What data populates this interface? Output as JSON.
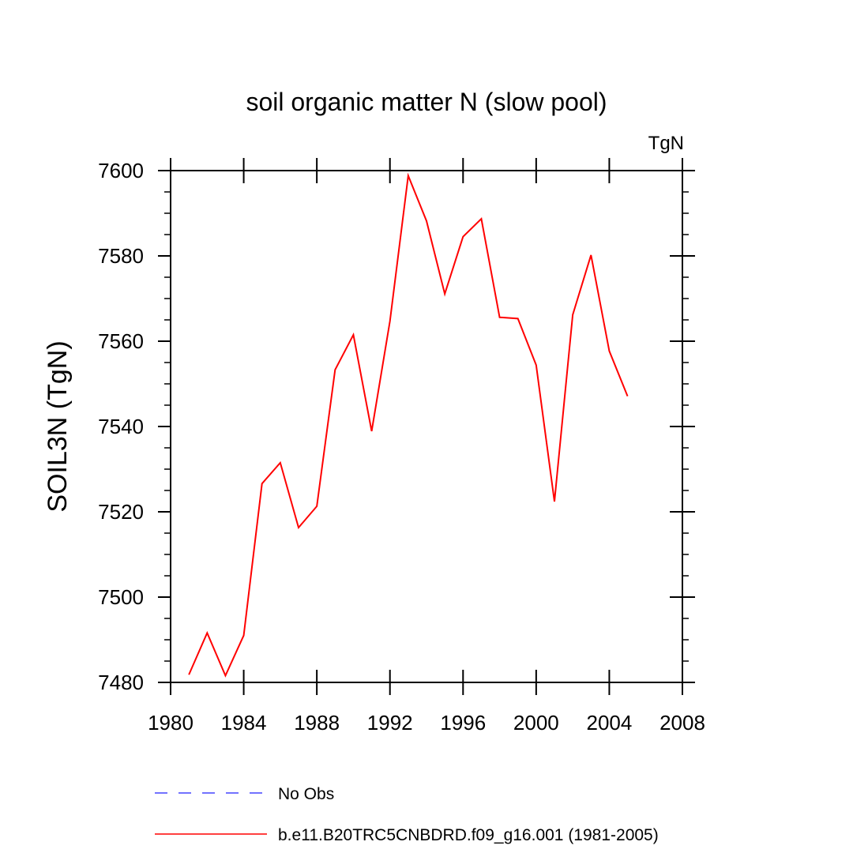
{
  "chart_data": {
    "type": "line",
    "title": "soil organic matter N (slow pool)",
    "units": "TgN",
    "xlabel": "",
    "ylabel": "SOIL3N  (TgN)",
    "xlim": [
      1980,
      2008
    ],
    "ylim": [
      7480,
      7600
    ],
    "xticks": [
      1980,
      1984,
      1988,
      1992,
      1996,
      2000,
      2004,
      2008
    ],
    "yticks": [
      7480,
      7500,
      7520,
      7540,
      7560,
      7580,
      7600
    ],
    "x_minor_step": 4,
    "y_minor_step": 5,
    "grid": false,
    "legend_position": "bottom",
    "series": [
      {
        "name": "No Obs",
        "color": "#4444ff",
        "style": "dashed",
        "x": [],
        "values": []
      },
      {
        "name": "b.e11.B20TRC5CNBDRD.f09_g16.001 (1981-2005)",
        "color": "#ff0000",
        "style": "solid",
        "x": [
          1981,
          1982,
          1983,
          1984,
          1985,
          1986,
          1987,
          1988,
          1989,
          1990,
          1991,
          1992,
          1993,
          1994,
          1995,
          1996,
          1997,
          1998,
          1999,
          2000,
          2001,
          2002,
          2003,
          2004,
          2005
        ],
        "values": [
          7481.8,
          7491.6,
          7481.6,
          7491.0,
          7526.6,
          7531.5,
          7516.3,
          7521.3,
          7553.3,
          7561.5,
          7538.9,
          7564.7,
          7598.8,
          7588.2,
          7571.1,
          7584.5,
          7588.7,
          7565.6,
          7565.3,
          7554.4,
          7522.4,
          7566.2,
          7580.2,
          7557.7,
          7547.1
        ]
      }
    ]
  }
}
